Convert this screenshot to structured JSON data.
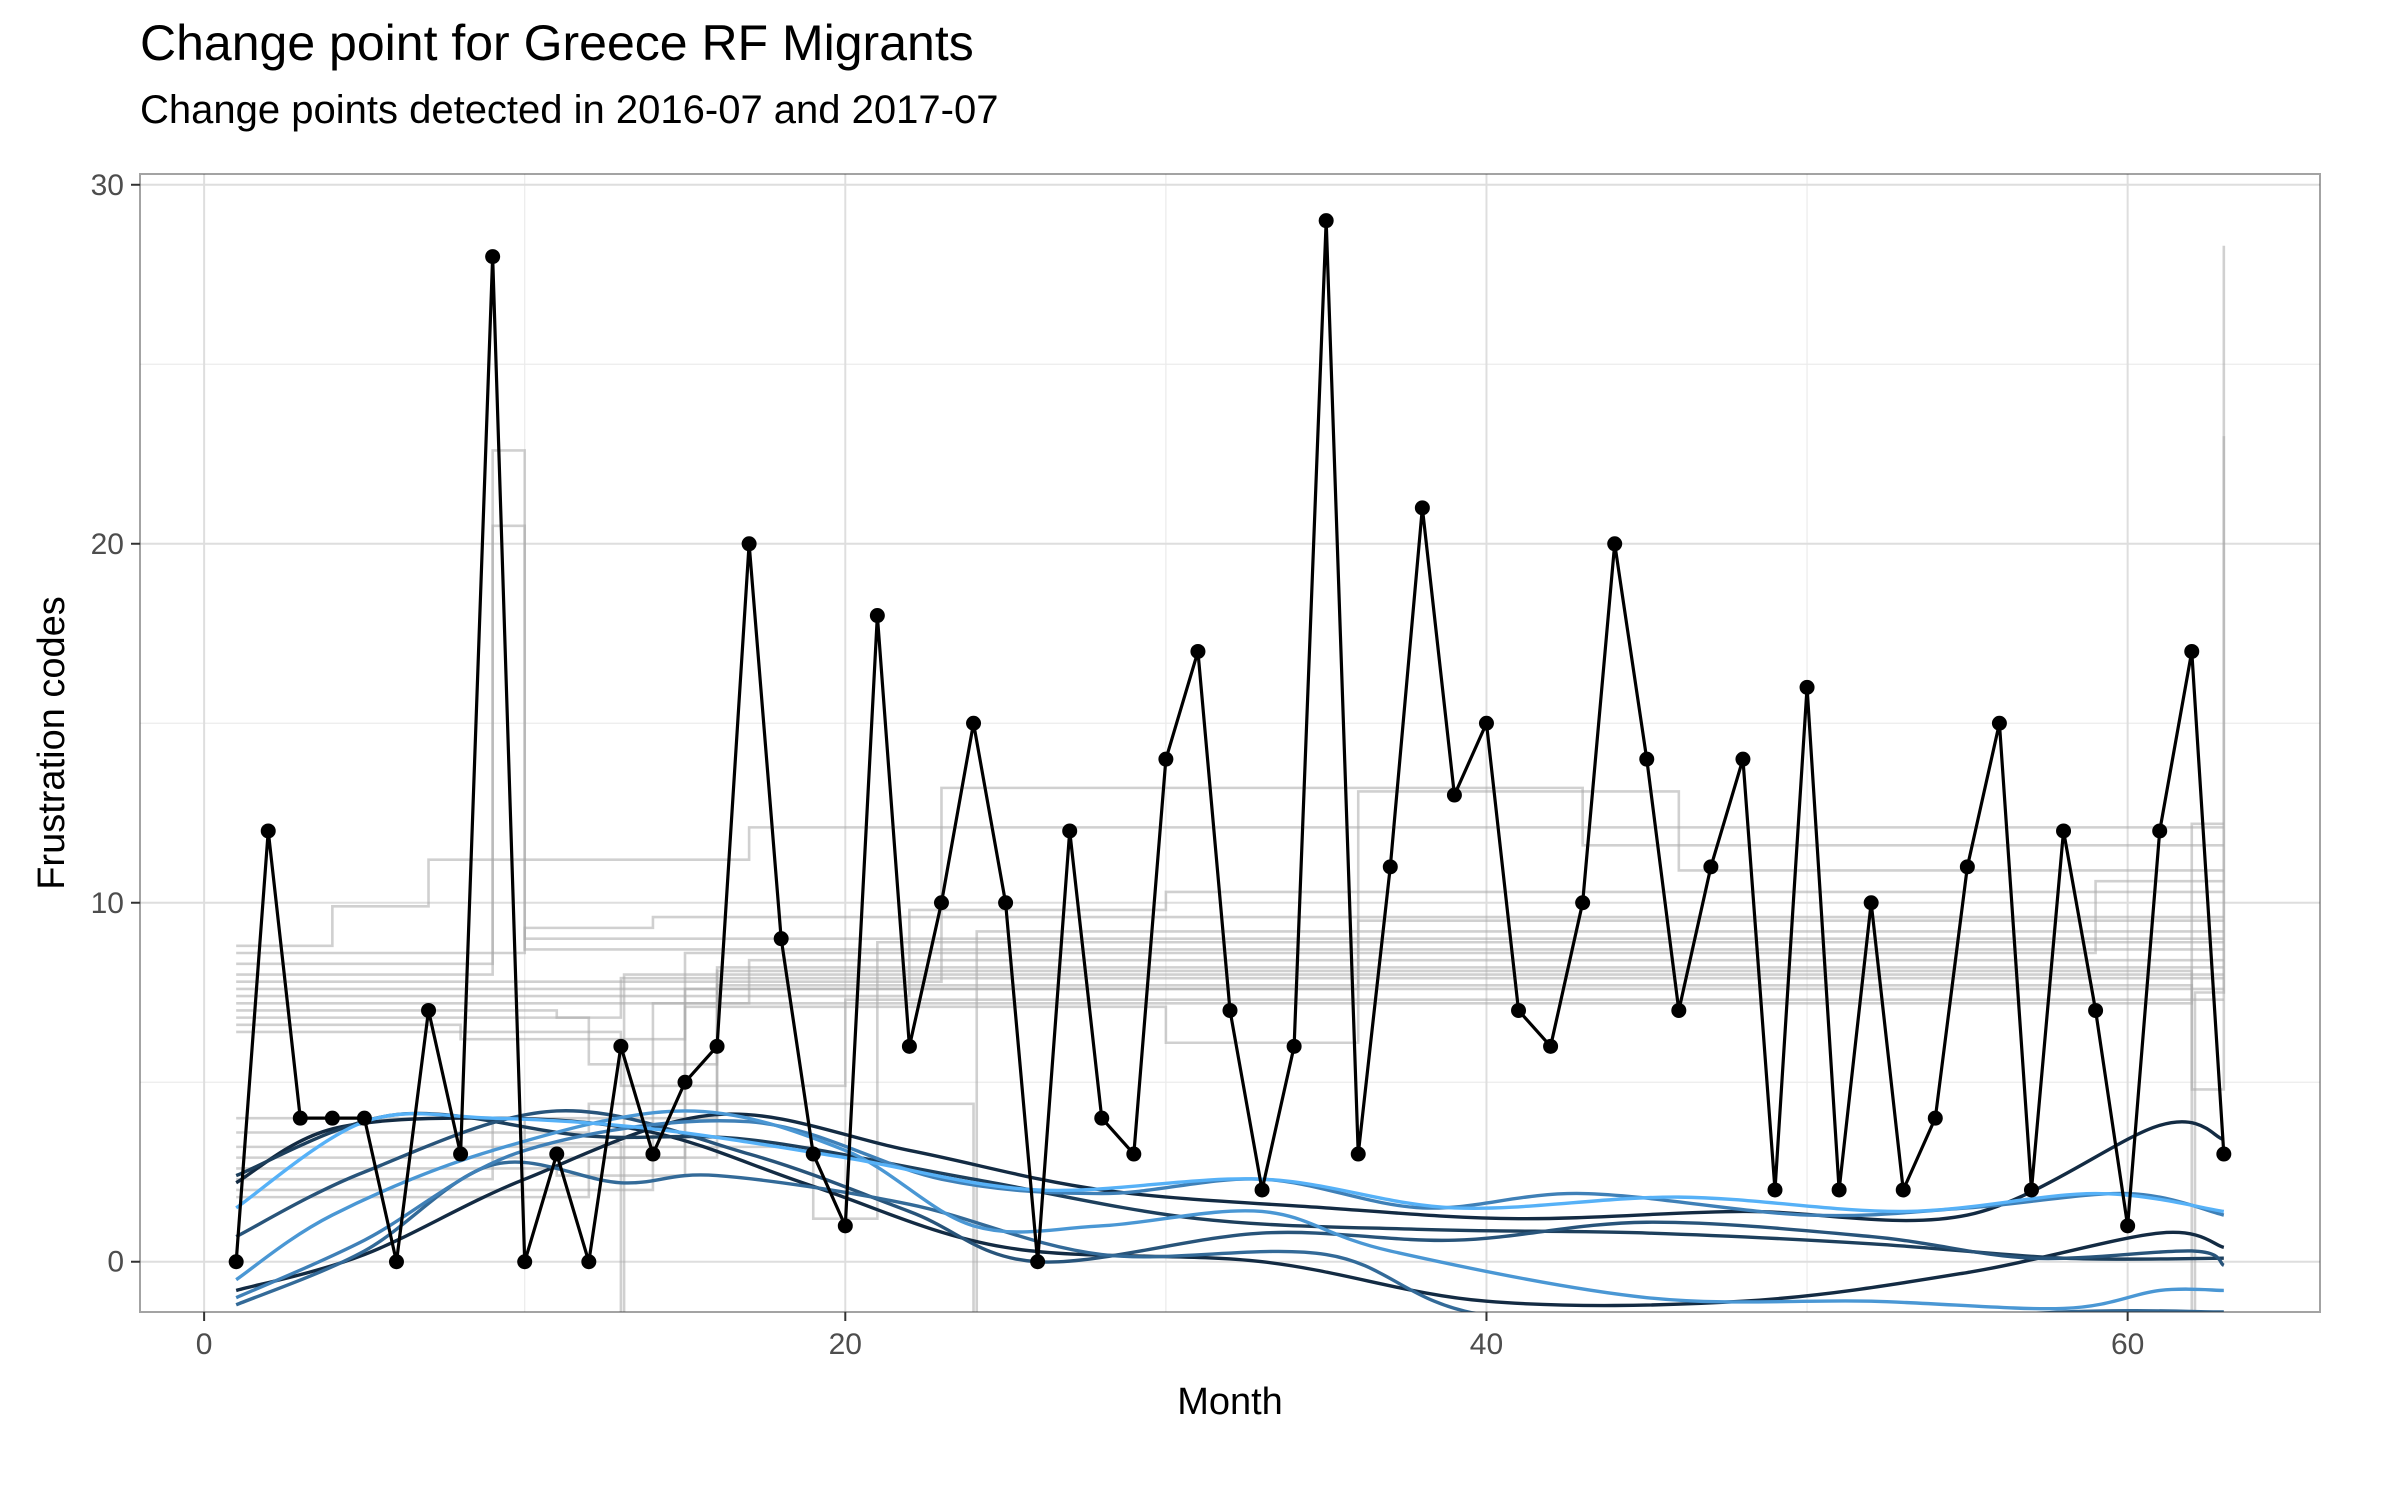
{
  "chart_data": {
    "type": "line",
    "title": "Change point for Greece RF Migrants",
    "subtitle": "Change points detected in 2016-07 and 2017-07",
    "xlabel": "Month",
    "ylabel": "Frustration codes",
    "xlim": [
      -2,
      66
    ],
    "ylim": [
      -1.4,
      30.3
    ],
    "x_ticks": [
      0,
      20,
      40,
      60
    ],
    "y_ticks": [
      0,
      10,
      20,
      30
    ],
    "grid": true,
    "legend": "none",
    "series": [
      {
        "x": [
          1,
          2,
          3,
          4,
          5,
          6,
          7,
          8,
          9,
          10,
          11,
          12,
          13,
          14,
          15,
          16,
          17,
          18,
          19,
          20,
          21,
          22,
          23,
          24,
          25,
          26,
          27,
          28,
          29,
          30,
          31,
          32,
          33,
          34,
          35,
          36,
          37,
          38,
          39,
          40,
          41,
          42,
          43,
          44,
          45,
          46,
          47,
          48,
          49,
          50,
          51,
          52,
          53,
          54,
          55,
          56,
          57,
          58,
          59,
          60,
          61,
          62,
          63
        ],
        "values": [
          0,
          12,
          4,
          4,
          4,
          0,
          7,
          3,
          28,
          0,
          3,
          0,
          6,
          3,
          5,
          6,
          20,
          9,
          3,
          1,
          18,
          6,
          10,
          15,
          10,
          0,
          12,
          4,
          3,
          14,
          17,
          7,
          2,
          6,
          29,
          3,
          11,
          21,
          13,
          15,
          7,
          6,
          10,
          20,
          14,
          7,
          11,
          14,
          2,
          16,
          2,
          10,
          2,
          4,
          11,
          15,
          2,
          12,
          7,
          1,
          12,
          17,
          3
        ]
      }
    ],
    "background_step_lines": [
      {
        "steps": [
          [
            1,
            8.8
          ],
          [
            4,
            9.9
          ],
          [
            7,
            11.2
          ],
          [
            17,
            12.1
          ],
          [
            63,
            12.1
          ]
        ]
      },
      {
        "steps": [
          [
            1,
            8.6
          ],
          [
            10,
            9.3
          ],
          [
            14,
            9.6
          ],
          [
            63,
            9.6
          ]
        ]
      },
      {
        "steps": [
          [
            1,
            8.3
          ],
          [
            9,
            20.5
          ],
          [
            10,
            9.0
          ],
          [
            63,
            9.0
          ]
        ]
      },
      {
        "steps": [
          [
            1,
            8.0
          ],
          [
            9,
            22.6
          ],
          [
            10,
            8.7
          ],
          [
            63,
            8.7
          ]
        ]
      },
      {
        "steps": [
          [
            1,
            7.8
          ],
          [
            23,
            13.2
          ],
          [
            43,
            11.6
          ],
          [
            63,
            11.6
          ]
        ]
      },
      {
        "steps": [
          [
            1,
            7.6
          ],
          [
            36,
            13.1
          ],
          [
            46,
            10.9
          ],
          [
            63,
            10.9
          ]
        ]
      },
      {
        "steps": [
          [
            1,
            7.4
          ],
          [
            22,
            9.8
          ],
          [
            30,
            10.3
          ],
          [
            63,
            10.3
          ]
        ]
      },
      {
        "steps": [
          [
            1,
            7.2
          ],
          [
            17,
            8.4
          ],
          [
            63,
            8.4
          ]
        ]
      },
      {
        "steps": [
          [
            1,
            7.0
          ],
          [
            11,
            6.8
          ],
          [
            13,
            7.9
          ],
          [
            63,
            7.9
          ]
        ]
      },
      {
        "steps": [
          [
            1,
            6.8
          ],
          [
            12,
            5.5
          ],
          [
            16,
            8.2
          ],
          [
            63,
            8.2
          ]
        ]
      },
      {
        "steps": [
          [
            1,
            6.6
          ],
          [
            8,
            6.2
          ],
          [
            15,
            7.6
          ],
          [
            63,
            7.6
          ]
        ]
      },
      {
        "steps": [
          [
            1,
            6.4
          ],
          [
            13,
            4.9
          ],
          [
            20,
            7.3
          ],
          [
            63,
            7.3
          ]
        ]
      },
      {
        "steps": [
          [
            1,
            4.0
          ],
          [
            10,
            3.3
          ],
          [
            13,
            -1.5
          ],
          [
            13.1,
            8.0
          ],
          [
            63,
            8.0
          ]
        ]
      },
      {
        "steps": [
          [
            1,
            3.6
          ],
          [
            12,
            4.4
          ],
          [
            24,
            -1.5
          ],
          [
            24.1,
            9.2
          ],
          [
            63,
            9.2
          ]
        ]
      },
      {
        "steps": [
          [
            1,
            3.2
          ],
          [
            19,
            1.2
          ],
          [
            21,
            8.9
          ],
          [
            63,
            8.9
          ]
        ]
      },
      {
        "steps": [
          [
            1,
            2.9
          ],
          [
            15,
            7.1
          ],
          [
            30,
            6.1
          ],
          [
            36,
            9.5
          ],
          [
            63,
            9.5
          ]
        ]
      },
      {
        "steps": [
          [
            1,
            2.6
          ],
          [
            11,
            2.4
          ],
          [
            15,
            8.6
          ],
          [
            59,
            10.6
          ],
          [
            63,
            10.6
          ]
        ]
      },
      {
        "steps": [
          [
            1,
            2.3
          ],
          [
            9,
            4.0
          ],
          [
            16,
            7.7
          ],
          [
            62,
            4.8
          ],
          [
            63,
            28.3
          ]
        ]
      },
      {
        "steps": [
          [
            1,
            2.0
          ],
          [
            14,
            7.2
          ],
          [
            62,
            12.2
          ],
          [
            63,
            12.2
          ]
        ]
      },
      {
        "steps": [
          [
            1,
            1.8
          ],
          [
            12,
            2.9
          ],
          [
            16,
            8.1
          ],
          [
            62,
            -1.5
          ],
          [
            62.1,
            7.5
          ],
          [
            63,
            23.0
          ]
        ]
      }
    ],
    "smooth_curves": [
      {
        "color": "#132b43",
        "points": [
          [
            1,
            -0.8
          ],
          [
            5,
            0.2
          ],
          [
            10,
            2.3
          ],
          [
            16,
            4.1
          ],
          [
            22,
            3.1
          ],
          [
            28,
            2.0
          ],
          [
            35,
            1.5
          ],
          [
            41,
            1.2
          ],
          [
            48,
            1.4
          ],
          [
            55,
            1.3
          ],
          [
            61,
            3.8
          ],
          [
            63,
            3.4
          ]
        ]
      },
      {
        "color": "#132b43",
        "points": [
          [
            1,
            2.2
          ],
          [
            4,
            3.7
          ],
          [
            9,
            4.0
          ],
          [
            14,
            3.6
          ],
          [
            19,
            2.1
          ],
          [
            25,
            0.4
          ],
          [
            33,
            0.0
          ],
          [
            40,
            -1.1
          ],
          [
            48,
            -1.1
          ],
          [
            55,
            -0.3
          ],
          [
            61,
            0.8
          ],
          [
            63,
            0.4
          ]
        ]
      },
      {
        "color": "#1d3f5c",
        "points": [
          [
            1,
            2.4
          ],
          [
            6,
            4.1
          ],
          [
            12,
            3.5
          ],
          [
            17,
            3.4
          ],
          [
            24,
            2.3
          ],
          [
            31,
            1.2
          ],
          [
            38,
            0.9
          ],
          [
            45,
            0.8
          ],
          [
            52,
            0.5
          ],
          [
            58,
            0.1
          ],
          [
            63,
            0.1
          ]
        ]
      },
      {
        "color": "#28547a",
        "points": [
          [
            1,
            0.7
          ],
          [
            5,
            2.5
          ],
          [
            11,
            4.2
          ],
          [
            17,
            3.0
          ],
          [
            22,
            1.4
          ],
          [
            26,
            0.0
          ],
          [
            33,
            0.8
          ],
          [
            39,
            0.6
          ],
          [
            45,
            1.1
          ],
          [
            52,
            0.7
          ],
          [
            57,
            0.1
          ],
          [
            62,
            0.3
          ],
          [
            63,
            -0.1
          ]
        ]
      },
      {
        "color": "#336a98",
        "points": [
          [
            1,
            -1.2
          ],
          [
            5,
            0.3
          ],
          [
            9,
            2.7
          ],
          [
            13,
            2.2
          ],
          [
            16,
            2.4
          ],
          [
            22,
            1.6
          ],
          [
            28,
            0.2
          ],
          [
            35,
            0.2
          ],
          [
            40,
            -1.5
          ],
          [
            50,
            -1.9
          ],
          [
            58,
            -1.4
          ],
          [
            63,
            -1.4
          ]
        ]
      },
      {
        "color": "#3f80b7",
        "points": [
          [
            1,
            -1.0
          ],
          [
            5,
            0.6
          ],
          [
            10,
            3.1
          ],
          [
            17,
            3.9
          ],
          [
            23,
            2.3
          ],
          [
            28,
            1.9
          ],
          [
            33,
            2.3
          ],
          [
            38,
            1.5
          ],
          [
            43,
            1.9
          ],
          [
            50,
            1.3
          ],
          [
            55,
            1.5
          ],
          [
            60,
            1.9
          ],
          [
            63,
            1.3
          ]
        ]
      },
      {
        "color": "#4a97d4",
        "points": [
          [
            1,
            -0.5
          ],
          [
            4,
            1.3
          ],
          [
            9,
            3.1
          ],
          [
            15,
            4.2
          ],
          [
            20,
            3.1
          ],
          [
            24,
            1.0
          ],
          [
            28,
            1.0
          ],
          [
            33,
            1.4
          ],
          [
            37,
            0.3
          ],
          [
            45,
            -1.0
          ],
          [
            52,
            -1.1
          ],
          [
            58,
            -1.3
          ],
          [
            61,
            -0.8
          ],
          [
            63,
            -0.8
          ]
        ]
      },
      {
        "color": "#56b1f7",
        "points": [
          [
            1,
            1.5
          ],
          [
            5,
            3.9
          ],
          [
            9,
            4.0
          ],
          [
            14,
            3.7
          ],
          [
            20,
            2.9
          ],
          [
            26,
            2.0
          ],
          [
            33,
            2.3
          ],
          [
            39,
            1.5
          ],
          [
            46,
            1.8
          ],
          [
            53,
            1.4
          ],
          [
            59,
            1.9
          ],
          [
            63,
            1.4
          ]
        ]
      }
    ]
  }
}
